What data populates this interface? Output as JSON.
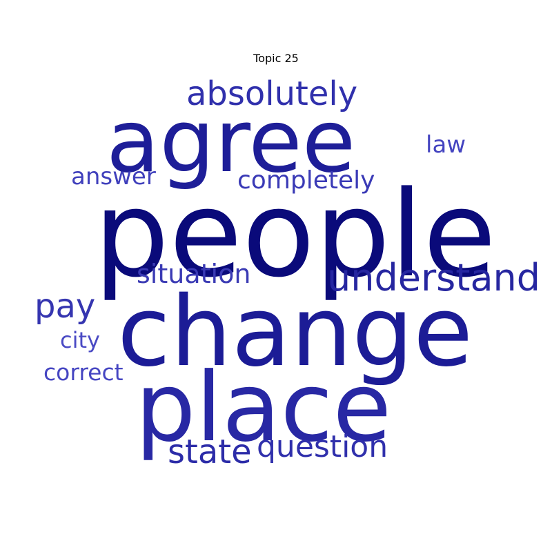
{
  "title": "Topic 25",
  "words": [
    {
      "key": "people",
      "text": "people",
      "color": "#0a0a7a"
    },
    {
      "key": "change",
      "text": "change",
      "color": "#1c1c96"
    },
    {
      "key": "agree",
      "text": "agree",
      "color": "#1e1e98"
    },
    {
      "key": "place",
      "text": "place",
      "color": "#2828a4"
    },
    {
      "key": "understand",
      "text": "understand",
      "color": "#2626a0"
    },
    {
      "key": "absolutely",
      "text": "absolutely",
      "color": "#3030ac"
    },
    {
      "key": "question",
      "text": "question",
      "color": "#3030ac"
    },
    {
      "key": "state",
      "text": "state",
      "color": "#2c2ca8"
    },
    {
      "key": "pay",
      "text": "pay",
      "color": "#3535b0"
    },
    {
      "key": "situation",
      "text": "situation",
      "color": "#3a3ab4"
    },
    {
      "key": "completely",
      "text": "completely",
      "color": "#3a3ab6"
    },
    {
      "key": "answer",
      "text": "answer",
      "color": "#4040bc"
    },
    {
      "key": "law",
      "text": "law",
      "color": "#4444c0"
    },
    {
      "key": "correct",
      "text": "correct",
      "color": "#4646c2"
    },
    {
      "key": "city",
      "text": "city",
      "color": "#4a4ac4"
    }
  ]
}
